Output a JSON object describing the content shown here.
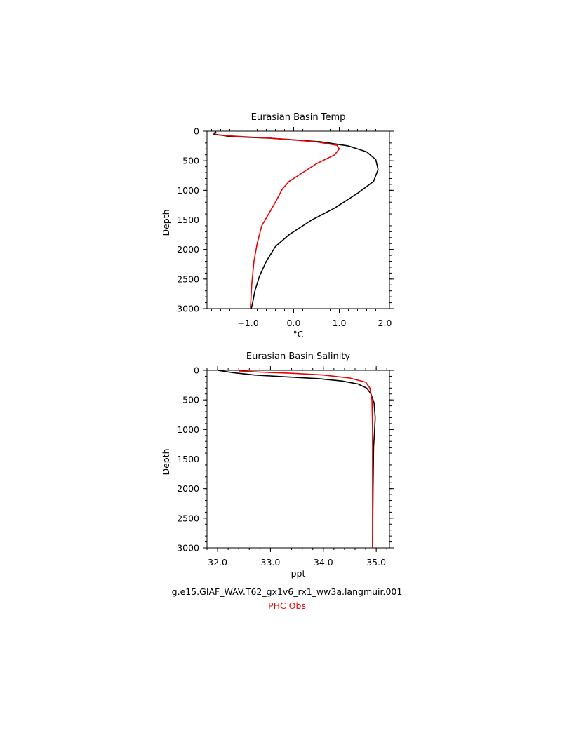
{
  "legend": {
    "case": "g.e15.GIAF_WAV.T62_gx1v6_rx1_ww3a.langmuir.001",
    "obs": "PHC Obs"
  },
  "colors": {
    "model": "#000000",
    "obs": "#ee0000"
  },
  "chart_data": [
    {
      "type": "line",
      "title": "Eurasian Basin Temp",
      "xlabel": "°C",
      "ylabel": "Depth",
      "xlim": [
        -1.9,
        2.1
      ],
      "ylim": [
        3000,
        0
      ],
      "y_inverted": true,
      "xticks": [
        -1.0,
        0.0,
        1.0,
        2.0
      ],
      "xtick_labels": [
        "−1.0",
        "0.0",
        "1.0",
        "2.0"
      ],
      "yticks": [
        0,
        500,
        1000,
        1500,
        2000,
        2500,
        3000
      ],
      "ytick_labels": [
        "0",
        "500",
        "1000",
        "1500",
        "2000",
        "2500",
        "3000"
      ],
      "grid": false,
      "series": [
        {
          "color": "#000000",
          "x": [
            -1.7,
            -1.75,
            -1.4,
            -0.5,
            0.6,
            1.2,
            1.6,
            1.8,
            1.85,
            1.75,
            1.4,
            0.9,
            0.4,
            -0.1,
            -0.4,
            -0.6,
            -0.75,
            -0.85,
            -0.9,
            -0.93
          ],
          "y": [
            10,
            50,
            90,
            120,
            180,
            250,
            350,
            480,
            650,
            850,
            1050,
            1300,
            1500,
            1750,
            1950,
            2200,
            2450,
            2700,
            2900,
            3000
          ]
        },
        {
          "color": "#ee0000",
          "x": [
            -1.75,
            -1.7,
            -1.4,
            -0.5,
            0.5,
            0.95,
            1.0,
            0.9,
            0.5,
            0.2,
            -0.1,
            -0.25,
            -0.4,
            -0.55,
            -0.7,
            -0.8,
            -0.87,
            -0.92,
            -0.95
          ],
          "y": [
            20,
            60,
            80,
            120,
            180,
            240,
            300,
            400,
            550,
            700,
            850,
            980,
            1200,
            1400,
            1600,
            1900,
            2200,
            2600,
            3000
          ]
        }
      ]
    },
    {
      "type": "line",
      "title": "Eurasian Basin Salinity",
      "xlabel": "ppt",
      "ylabel": "Depth",
      "xlim": [
        31.8,
        35.25
      ],
      "ylim": [
        3000,
        0
      ],
      "y_inverted": true,
      "xticks": [
        32.0,
        33.0,
        34.0,
        35.0
      ],
      "xtick_labels": [
        "32.0",
        "33.0",
        "34.0",
        "35.0"
      ],
      "yticks": [
        0,
        500,
        1000,
        1500,
        2000,
        2500,
        3000
      ],
      "ytick_labels": [
        "0",
        "500",
        "1000",
        "1500",
        "2000",
        "2500",
        "3000"
      ],
      "grid": false,
      "series": [
        {
          "color": "#000000",
          "x": [
            32.0,
            32.3,
            32.7,
            33.3,
            33.9,
            34.35,
            34.65,
            34.82,
            34.9,
            34.96,
            34.98,
            34.97,
            34.95,
            34.94,
            34.93
          ],
          "y": [
            0,
            40,
            80,
            110,
            140,
            180,
            230,
            300,
            400,
            550,
            800,
            1000,
            1300,
            2000,
            3000
          ]
        },
        {
          "color": "#ee0000",
          "x": [
            32.4,
            32.8,
            33.4,
            34.0,
            34.5,
            34.8,
            34.88,
            34.92,
            34.93,
            34.93
          ],
          "y": [
            10,
            30,
            50,
            80,
            130,
            200,
            300,
            500,
            1000,
            3000
          ]
        }
      ]
    }
  ]
}
